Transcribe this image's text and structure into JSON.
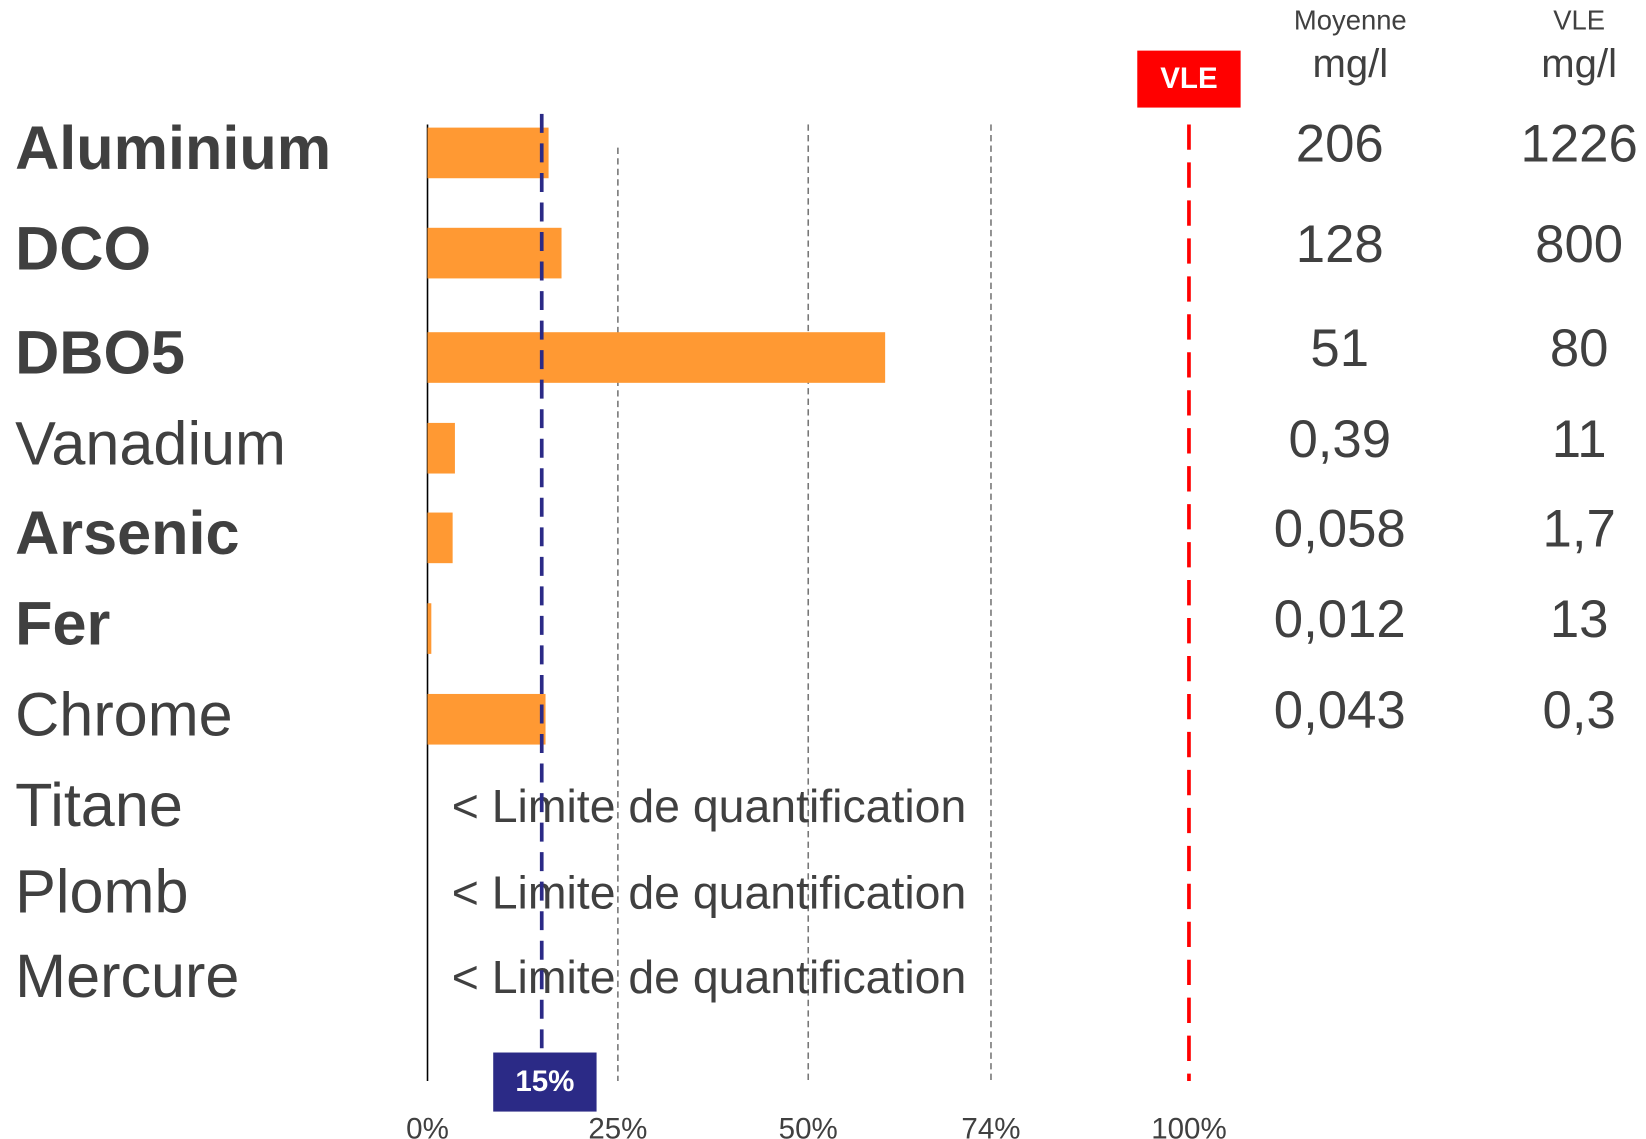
{
  "chart_data": {
    "type": "bar",
    "orientation": "horizontal",
    "categories": [
      "Aluminium",
      "DCO",
      "DBO5",
      "Vanadium",
      "Arsenic",
      "Fer",
      "Chrome",
      "Titane",
      "Plomb",
      "Mercure"
    ],
    "bold": [
      true,
      true,
      true,
      false,
      true,
      true,
      false,
      false,
      false,
      false
    ],
    "values": [
      15.9,
      17.6,
      60.1,
      3.6,
      3.3,
      0.5,
      15.5,
      null,
      null,
      null
    ],
    "bar_notes": [
      null,
      null,
      null,
      null,
      null,
      null,
      null,
      "< Limite de quantification",
      "< Limite de quantification",
      "< Limite de quantification"
    ],
    "color": "#ff9933",
    "xlim": [
      0,
      100
    ],
    "xticks": [
      {
        "value": 0,
        "label": "0%"
      },
      {
        "value": 25,
        "label": "25%"
      },
      {
        "value": 50,
        "label": "50%"
      },
      {
        "value": 74,
        "label": "74%"
      },
      {
        "value": 100,
        "label": "100%"
      }
    ],
    "grid": true,
    "reference_lines": [
      {
        "value": 15,
        "label": "15%",
        "color": "#2b2a86"
      },
      {
        "value": 100,
        "label": "VLE",
        "color": "#ff0000"
      }
    ],
    "columns": [
      {
        "title": "Moyenne",
        "unit": "mg/l",
        "values": [
          "206",
          "128",
          "51",
          "0,39",
          "0,058",
          "0,012",
          "0,043",
          null,
          null,
          null
        ]
      },
      {
        "title": "VLE",
        "unit": "mg/l",
        "values": [
          "1226",
          "800",
          "80",
          "11",
          "1,7",
          "13",
          "0,3",
          null,
          null,
          null
        ]
      }
    ]
  }
}
